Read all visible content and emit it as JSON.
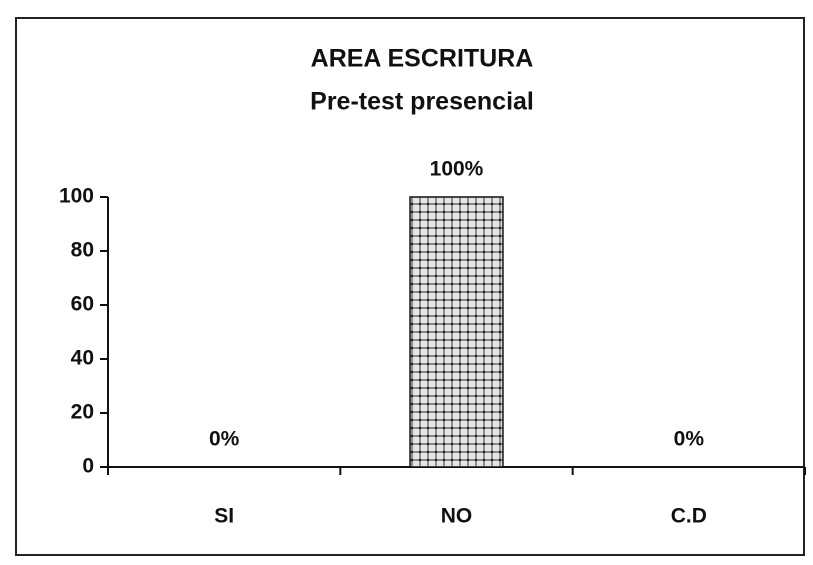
{
  "chart_data": {
    "type": "bar",
    "title": "AREA ESCRITURA",
    "subtitle": "Pre-test presencial",
    "categories": [
      "SI",
      "NO",
      "C.D"
    ],
    "values": [
      0,
      100,
      0
    ],
    "value_labels": [
      "0%",
      "100%",
      "0%"
    ],
    "color": "#d0d0d0",
    "ylim": [
      0,
      100
    ],
    "yticks": [
      0,
      20,
      40,
      60,
      80,
      100
    ]
  }
}
